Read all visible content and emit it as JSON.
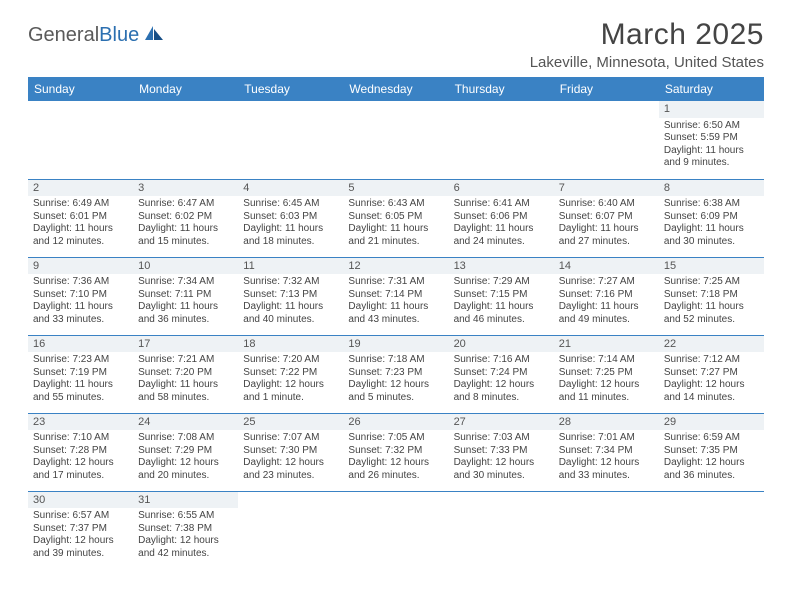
{
  "logo": {
    "word1": "General",
    "word2": "Blue"
  },
  "title": "March 2025",
  "location": "Lakeville, Minnesota, United States",
  "colors": {
    "header_bg": "#3a82c4",
    "header_text": "#ffffff",
    "row_divider": "#3a82c4",
    "daynum_bg": "#eef2f5",
    "body_text": "#444444",
    "logo_gray": "#5a5a5a",
    "logo_blue": "#2b6fb0"
  },
  "layout": {
    "type": "table",
    "columns": 7,
    "rows": 6,
    "first_day_column_index": 6
  },
  "weekdays": [
    "Sunday",
    "Monday",
    "Tuesday",
    "Wednesday",
    "Thursday",
    "Friday",
    "Saturday"
  ],
  "days": [
    {
      "n": "1",
      "sunrise": "Sunrise: 6:50 AM",
      "sunset": "Sunset: 5:59 PM",
      "daylight": "Daylight: 11 hours and 9 minutes."
    },
    {
      "n": "2",
      "sunrise": "Sunrise: 6:49 AM",
      "sunset": "Sunset: 6:01 PM",
      "daylight": "Daylight: 11 hours and 12 minutes."
    },
    {
      "n": "3",
      "sunrise": "Sunrise: 6:47 AM",
      "sunset": "Sunset: 6:02 PM",
      "daylight": "Daylight: 11 hours and 15 minutes."
    },
    {
      "n": "4",
      "sunrise": "Sunrise: 6:45 AM",
      "sunset": "Sunset: 6:03 PM",
      "daylight": "Daylight: 11 hours and 18 minutes."
    },
    {
      "n": "5",
      "sunrise": "Sunrise: 6:43 AM",
      "sunset": "Sunset: 6:05 PM",
      "daylight": "Daylight: 11 hours and 21 minutes."
    },
    {
      "n": "6",
      "sunrise": "Sunrise: 6:41 AM",
      "sunset": "Sunset: 6:06 PM",
      "daylight": "Daylight: 11 hours and 24 minutes."
    },
    {
      "n": "7",
      "sunrise": "Sunrise: 6:40 AM",
      "sunset": "Sunset: 6:07 PM",
      "daylight": "Daylight: 11 hours and 27 minutes."
    },
    {
      "n": "8",
      "sunrise": "Sunrise: 6:38 AM",
      "sunset": "Sunset: 6:09 PM",
      "daylight": "Daylight: 11 hours and 30 minutes."
    },
    {
      "n": "9",
      "sunrise": "Sunrise: 7:36 AM",
      "sunset": "Sunset: 7:10 PM",
      "daylight": "Daylight: 11 hours and 33 minutes."
    },
    {
      "n": "10",
      "sunrise": "Sunrise: 7:34 AM",
      "sunset": "Sunset: 7:11 PM",
      "daylight": "Daylight: 11 hours and 36 minutes."
    },
    {
      "n": "11",
      "sunrise": "Sunrise: 7:32 AM",
      "sunset": "Sunset: 7:13 PM",
      "daylight": "Daylight: 11 hours and 40 minutes."
    },
    {
      "n": "12",
      "sunrise": "Sunrise: 7:31 AM",
      "sunset": "Sunset: 7:14 PM",
      "daylight": "Daylight: 11 hours and 43 minutes."
    },
    {
      "n": "13",
      "sunrise": "Sunrise: 7:29 AM",
      "sunset": "Sunset: 7:15 PM",
      "daylight": "Daylight: 11 hours and 46 minutes."
    },
    {
      "n": "14",
      "sunrise": "Sunrise: 7:27 AM",
      "sunset": "Sunset: 7:16 PM",
      "daylight": "Daylight: 11 hours and 49 minutes."
    },
    {
      "n": "15",
      "sunrise": "Sunrise: 7:25 AM",
      "sunset": "Sunset: 7:18 PM",
      "daylight": "Daylight: 11 hours and 52 minutes."
    },
    {
      "n": "16",
      "sunrise": "Sunrise: 7:23 AM",
      "sunset": "Sunset: 7:19 PM",
      "daylight": "Daylight: 11 hours and 55 minutes."
    },
    {
      "n": "17",
      "sunrise": "Sunrise: 7:21 AM",
      "sunset": "Sunset: 7:20 PM",
      "daylight": "Daylight: 11 hours and 58 minutes."
    },
    {
      "n": "18",
      "sunrise": "Sunrise: 7:20 AM",
      "sunset": "Sunset: 7:22 PM",
      "daylight": "Daylight: 12 hours and 1 minute."
    },
    {
      "n": "19",
      "sunrise": "Sunrise: 7:18 AM",
      "sunset": "Sunset: 7:23 PM",
      "daylight": "Daylight: 12 hours and 5 minutes."
    },
    {
      "n": "20",
      "sunrise": "Sunrise: 7:16 AM",
      "sunset": "Sunset: 7:24 PM",
      "daylight": "Daylight: 12 hours and 8 minutes."
    },
    {
      "n": "21",
      "sunrise": "Sunrise: 7:14 AM",
      "sunset": "Sunset: 7:25 PM",
      "daylight": "Daylight: 12 hours and 11 minutes."
    },
    {
      "n": "22",
      "sunrise": "Sunrise: 7:12 AM",
      "sunset": "Sunset: 7:27 PM",
      "daylight": "Daylight: 12 hours and 14 minutes."
    },
    {
      "n": "23",
      "sunrise": "Sunrise: 7:10 AM",
      "sunset": "Sunset: 7:28 PM",
      "daylight": "Daylight: 12 hours and 17 minutes."
    },
    {
      "n": "24",
      "sunrise": "Sunrise: 7:08 AM",
      "sunset": "Sunset: 7:29 PM",
      "daylight": "Daylight: 12 hours and 20 minutes."
    },
    {
      "n": "25",
      "sunrise": "Sunrise: 7:07 AM",
      "sunset": "Sunset: 7:30 PM",
      "daylight": "Daylight: 12 hours and 23 minutes."
    },
    {
      "n": "26",
      "sunrise": "Sunrise: 7:05 AM",
      "sunset": "Sunset: 7:32 PM",
      "daylight": "Daylight: 12 hours and 26 minutes."
    },
    {
      "n": "27",
      "sunrise": "Sunrise: 7:03 AM",
      "sunset": "Sunset: 7:33 PM",
      "daylight": "Daylight: 12 hours and 30 minutes."
    },
    {
      "n": "28",
      "sunrise": "Sunrise: 7:01 AM",
      "sunset": "Sunset: 7:34 PM",
      "daylight": "Daylight: 12 hours and 33 minutes."
    },
    {
      "n": "29",
      "sunrise": "Sunrise: 6:59 AM",
      "sunset": "Sunset: 7:35 PM",
      "daylight": "Daylight: 12 hours and 36 minutes."
    },
    {
      "n": "30",
      "sunrise": "Sunrise: 6:57 AM",
      "sunset": "Sunset: 7:37 PM",
      "daylight": "Daylight: 12 hours and 39 minutes."
    },
    {
      "n": "31",
      "sunrise": "Sunrise: 6:55 AM",
      "sunset": "Sunset: 7:38 PM",
      "daylight": "Daylight: 12 hours and 42 minutes."
    }
  ]
}
